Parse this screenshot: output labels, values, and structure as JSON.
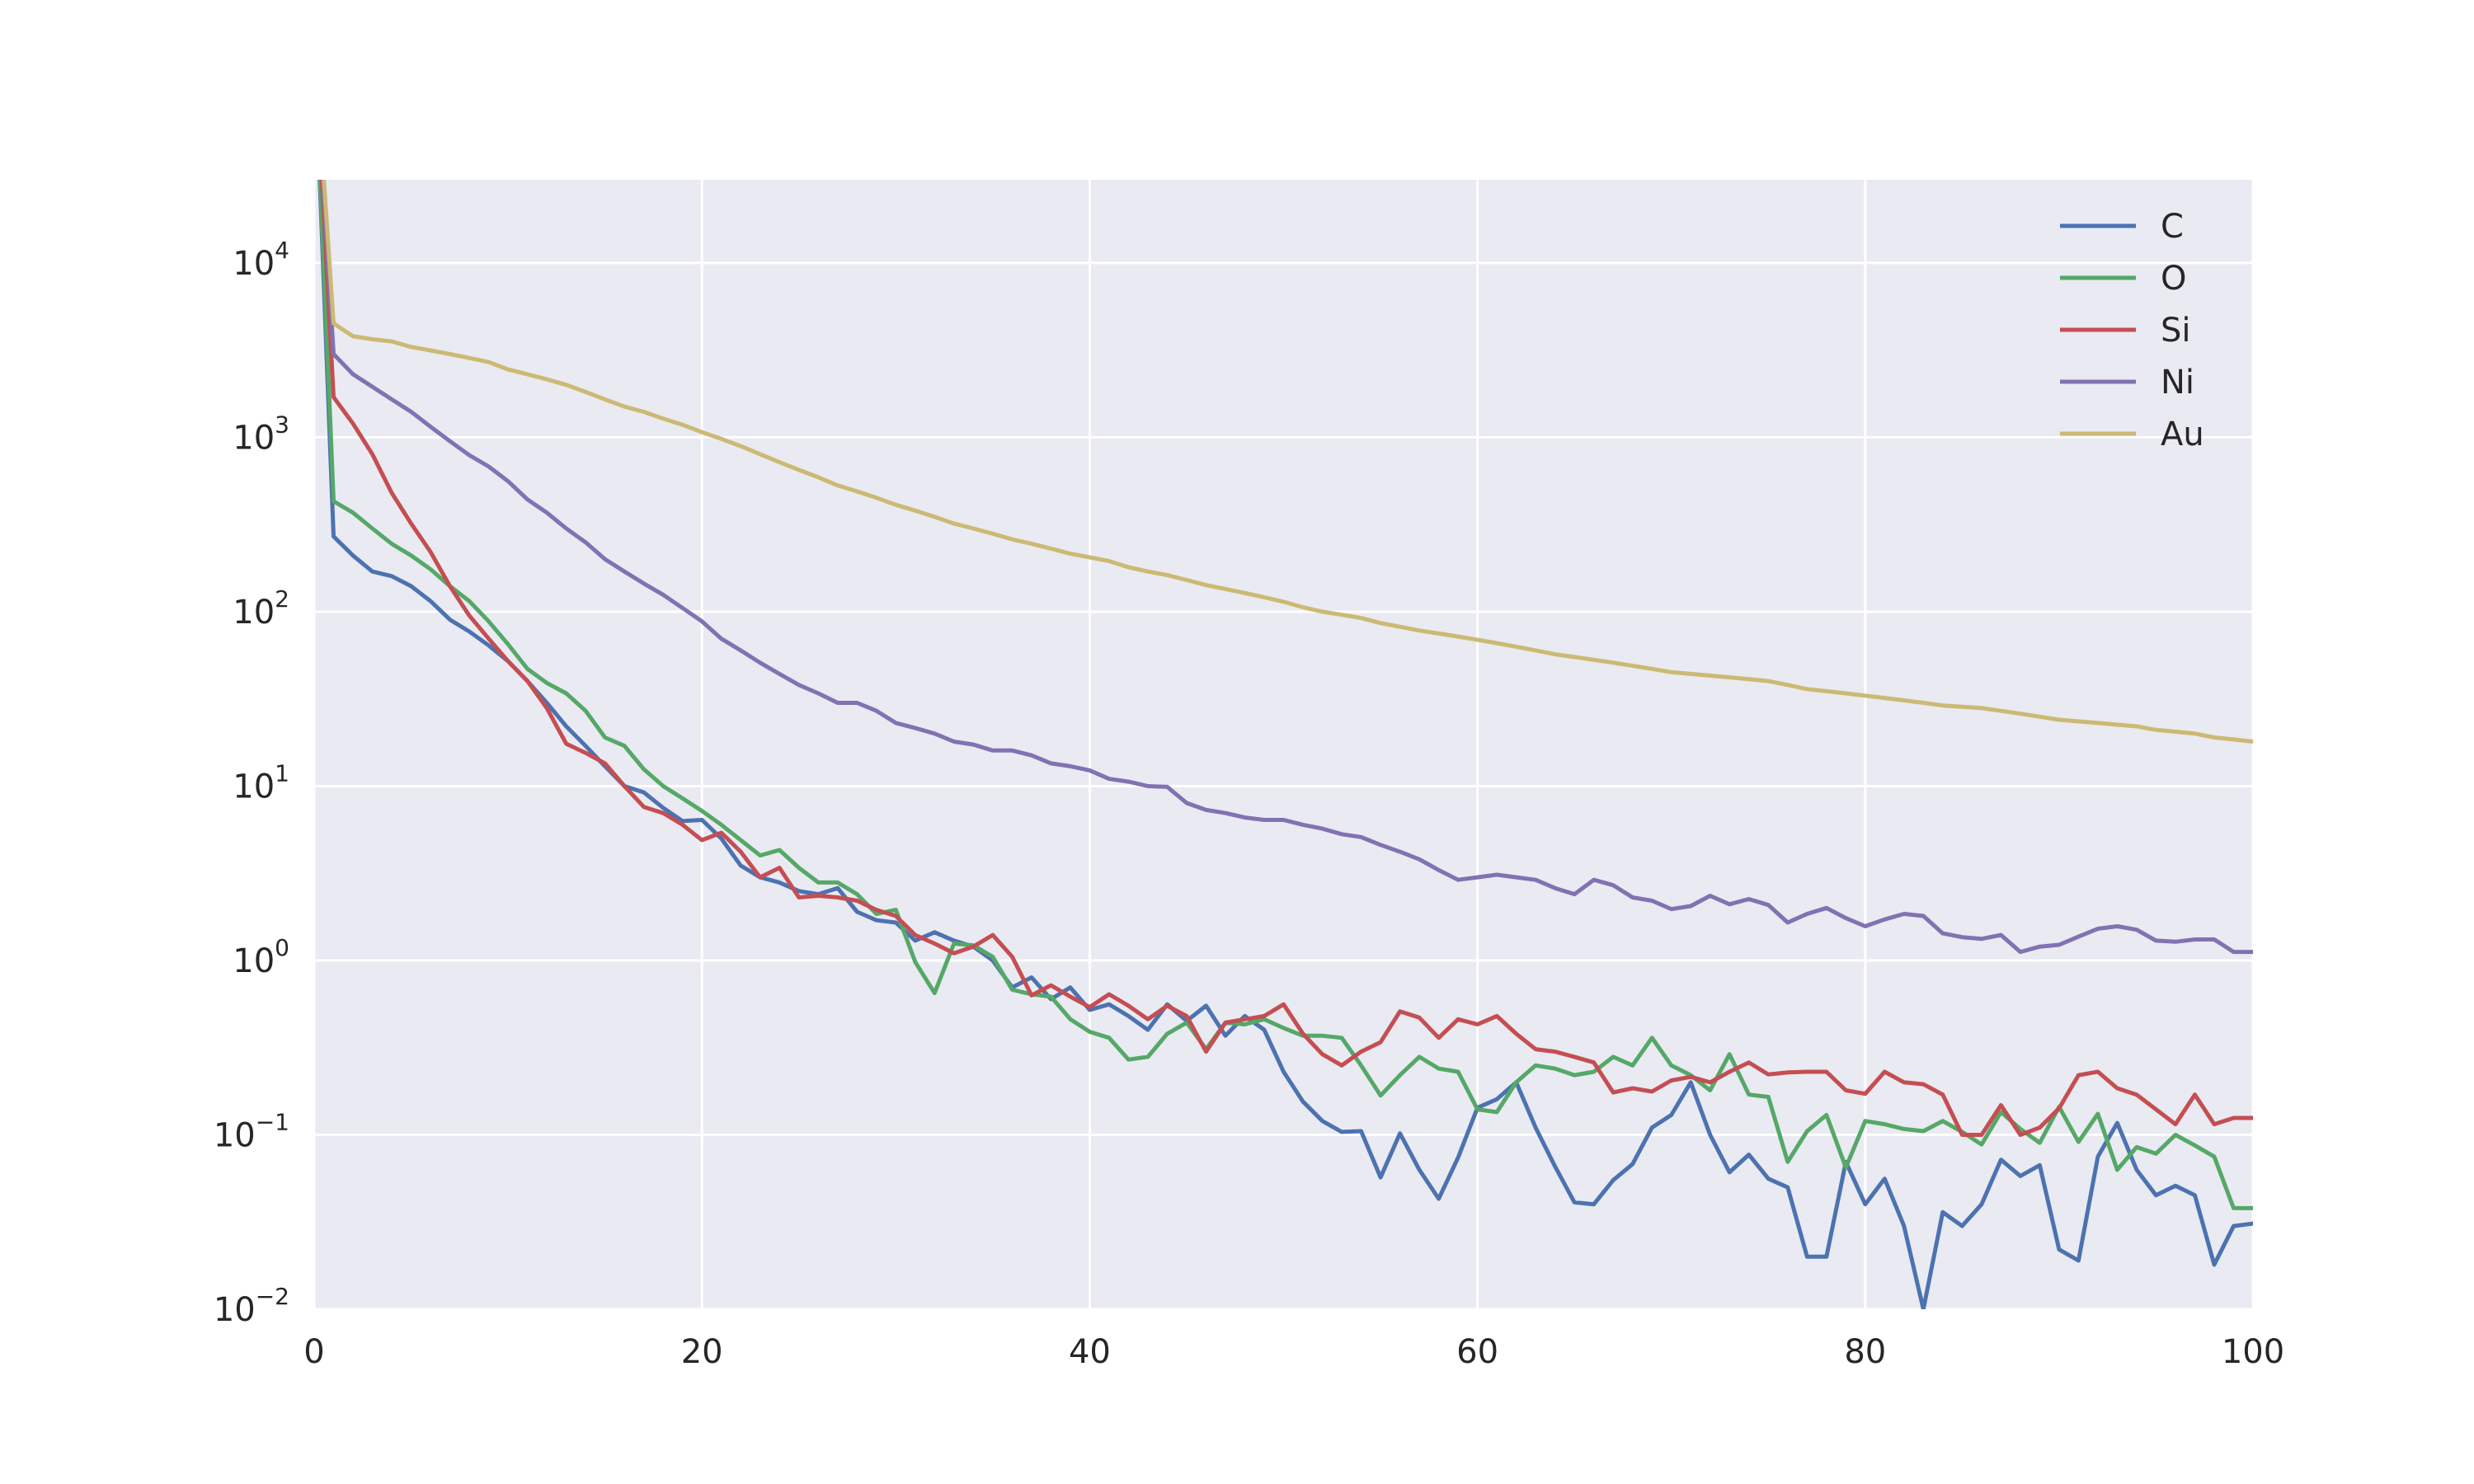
{
  "chart_data": {
    "type": "line",
    "title": "",
    "xlabel": "",
    "ylabel": "",
    "xlim": [
      0,
      100
    ],
    "ylim": [
      0.01,
      30000
    ],
    "yscale": "log",
    "grid": true,
    "legend_position": "top-right",
    "x_ticks": [
      "0",
      "20",
      "40",
      "60",
      "80",
      "100"
    ],
    "y_ticks": [
      {
        "base": "10",
        "exp": "−2"
      },
      {
        "base": "10",
        "exp": "−1"
      },
      {
        "base": "10",
        "exp": "0"
      },
      {
        "base": "10",
        "exp": "1"
      },
      {
        "base": "10",
        "exp": "2"
      },
      {
        "base": "10",
        "exp": "3"
      },
      {
        "base": "10",
        "exp": "4"
      }
    ],
    "x": [
      0,
      1,
      2,
      3,
      4,
      5,
      6,
      7,
      8,
      9,
      10,
      11,
      12,
      13,
      14,
      15,
      16,
      17,
      18,
      19,
      20,
      21,
      22,
      23,
      24,
      25,
      26,
      27,
      28,
      29,
      30,
      31,
      32,
      33,
      34,
      35,
      36,
      37,
      38,
      39,
      40,
      41,
      42,
      43,
      44,
      45,
      46,
      47,
      48,
      49,
      50,
      51,
      52,
      53,
      54,
      55,
      56,
      57,
      58,
      59,
      60,
      61,
      62,
      63,
      64,
      65,
      66,
      67,
      68,
      69,
      70,
      71,
      72,
      73,
      74,
      75,
      76,
      77,
      78,
      79,
      80,
      81,
      82,
      83,
      84,
      85,
      86,
      87,
      88,
      89,
      90,
      91,
      92,
      93,
      94,
      95,
      96,
      97,
      98,
      99,
      100
    ],
    "series": [
      {
        "name": "C",
        "color": "#4c72b0",
        "values": [
          200000,
          270,
          210,
          170,
          160,
          140,
          115,
          90,
          77,
          64,
          52,
          40,
          30,
          22,
          17,
          13,
          10,
          9.2,
          7.5,
          6.3,
          6.4,
          5,
          3.5,
          3,
          2.8,
          2.5,
          2.4,
          2.6,
          1.9,
          1.7,
          1.65,
          1.3,
          1.45,
          1.3,
          1.2,
          1.0,
          0.7,
          0.8,
          0.6,
          0.7,
          0.52,
          0.56,
          0.48,
          0.4,
          0.56,
          0.45,
          0.55,
          0.37,
          0.48,
          0.4,
          0.23,
          0.155,
          0.12,
          0.104,
          0.105,
          0.057,
          0.102,
          0.063,
          0.043,
          0.074,
          0.143,
          0.16,
          0.2,
          0.11,
          0.066,
          0.041,
          0.04,
          0.055,
          0.068,
          0.11,
          0.13,
          0.2,
          0.1,
          0.061,
          0.077,
          0.056,
          0.05,
          0.02,
          0.02,
          0.07,
          0.04,
          0.056,
          0.03,
          0.01,
          0.036,
          0.03,
          0.04,
          0.072,
          0.058,
          0.067,
          0.022,
          0.019,
          0.075,
          0.117,
          0.063,
          0.045,
          0.051,
          0.045,
          0.018,
          0.03,
          0.031
        ]
      },
      {
        "name": "O",
        "color": "#55a868",
        "values": [
          200000,
          430,
          370,
          300,
          245,
          210,
          175,
          140,
          115,
          88,
          65,
          47,
          39,
          34,
          27,
          19,
          17,
          12.5,
          10,
          8.5,
          7.2,
          6,
          4.9,
          4,
          4.3,
          3.4,
          2.8,
          2.8,
          2.4,
          1.85,
          1.95,
          0.98,
          0.65,
          1.25,
          1.22,
          1.05,
          0.68,
          0.64,
          0.62,
          0.46,
          0.39,
          0.36,
          0.27,
          0.28,
          0.38,
          0.44,
          0.31,
          0.44,
          0.43,
          0.46,
          0.41,
          0.37,
          0.37,
          0.36,
          0.25,
          0.168,
          0.22,
          0.28,
          0.24,
          0.23,
          0.14,
          0.135,
          0.2,
          0.25,
          0.24,
          0.22,
          0.23,
          0.28,
          0.25,
          0.36,
          0.25,
          0.22,
          0.18,
          0.29,
          0.17,
          0.165,
          0.07,
          0.105,
          0.13,
          0.065,
          0.12,
          0.115,
          0.108,
          0.105,
          0.12,
          0.104,
          0.088,
          0.135,
          0.108,
          0.09,
          0.145,
          0.091,
          0.132,
          0.063,
          0.085,
          0.078,
          0.1,
          0.087,
          0.075,
          0.038,
          0.038
        ]
      },
      {
        "name": "Si",
        "color": "#c44e52",
        "values": [
          200000,
          1700,
          1200,
          800,
          480,
          320,
          220,
          140,
          95,
          70,
          52,
          40,
          28,
          17.5,
          15.5,
          13.5,
          10,
          7.6,
          7,
          6,
          4.9,
          5.4,
          4.2,
          3,
          3.4,
          2.3,
          2.35,
          2.3,
          2.2,
          1.95,
          1.8,
          1.4,
          1.25,
          1.1,
          1.2,
          1.4,
          1.05,
          0.63,
          0.72,
          0.62,
          0.54,
          0.64,
          0.55,
          0.46,
          0.55,
          0.48,
          0.3,
          0.44,
          0.46,
          0.48,
          0.56,
          0.38,
          0.29,
          0.25,
          0.3,
          0.34,
          0.51,
          0.47,
          0.36,
          0.46,
          0.43,
          0.48,
          0.38,
          0.31,
          0.3,
          0.28,
          0.26,
          0.175,
          0.185,
          0.177,
          0.205,
          0.215,
          0.2,
          0.23,
          0.26,
          0.222,
          0.228,
          0.23,
          0.23,
          0.18,
          0.172,
          0.23,
          0.2,
          0.195,
          0.17,
          0.1,
          0.1,
          0.148,
          0.1,
          0.11,
          0.142,
          0.22,
          0.23,
          0.185,
          0.17,
          0.14,
          0.115,
          0.17,
          0.115,
          0.125,
          0.125
        ]
      },
      {
        "name": "Ni",
        "color": "#8172b2",
        "values": [
          200000,
          3000,
          2300,
          1950,
          1650,
          1400,
          1150,
          950,
          790,
          680,
          560,
          440,
          370,
          300,
          250,
          200,
          170,
          145,
          125,
          105,
          88,
          70,
          60,
          51,
          44,
          38,
          34,
          30,
          30,
          27,
          23,
          21.5,
          20,
          18,
          17.3,
          16,
          16,
          15,
          13.5,
          13,
          12.3,
          11,
          10.6,
          10,
          9.9,
          8,
          7.3,
          7,
          6.6,
          6.4,
          6.4,
          6,
          5.7,
          5.3,
          5.1,
          4.6,
          4.2,
          3.8,
          3.3,
          2.9,
          3,
          3.1,
          3,
          2.9,
          2.6,
          2.4,
          2.9,
          2.7,
          2.3,
          2.2,
          1.97,
          2.05,
          2.35,
          2.1,
          2.25,
          2.08,
          1.65,
          1.85,
          2,
          1.75,
          1.57,
          1.72,
          1.85,
          1.8,
          1.43,
          1.36,
          1.33,
          1.4,
          1.12,
          1.2,
          1.23,
          1.37,
          1.52,
          1.57,
          1.5,
          1.3,
          1.28,
          1.32,
          1.32,
          1.12,
          1.12
        ]
      },
      {
        "name": "Au",
        "color": "#ccb974",
        "values": [
          200000,
          4500,
          3800,
          3650,
          3550,
          3300,
          3150,
          3000,
          2850,
          2700,
          2450,
          2300,
          2150,
          2000,
          1820,
          1650,
          1500,
          1400,
          1280,
          1180,
          1070,
          980,
          890,
          800,
          720,
          650,
          590,
          530,
          490,
          450,
          410,
          380,
          350,
          320,
          300,
          280,
          260,
          245,
          230,
          215,
          205,
          195,
          180,
          170,
          162,
          152,
          142,
          135,
          128,
          121,
          114,
          106,
          100,
          96,
          92,
          86,
          82,
          78,
          75,
          72,
          69,
          66,
          63,
          60,
          57,
          55,
          53,
          51,
          49,
          47,
          45,
          44,
          43,
          42,
          41,
          40,
          38,
          36,
          35,
          34,
          33,
          32,
          31,
          30,
          29,
          28.5,
          28,
          27,
          26,
          25,
          24,
          23.5,
          23,
          22.5,
          22,
          21,
          20.5,
          20,
          19,
          18.5,
          18
        ]
      }
    ]
  }
}
